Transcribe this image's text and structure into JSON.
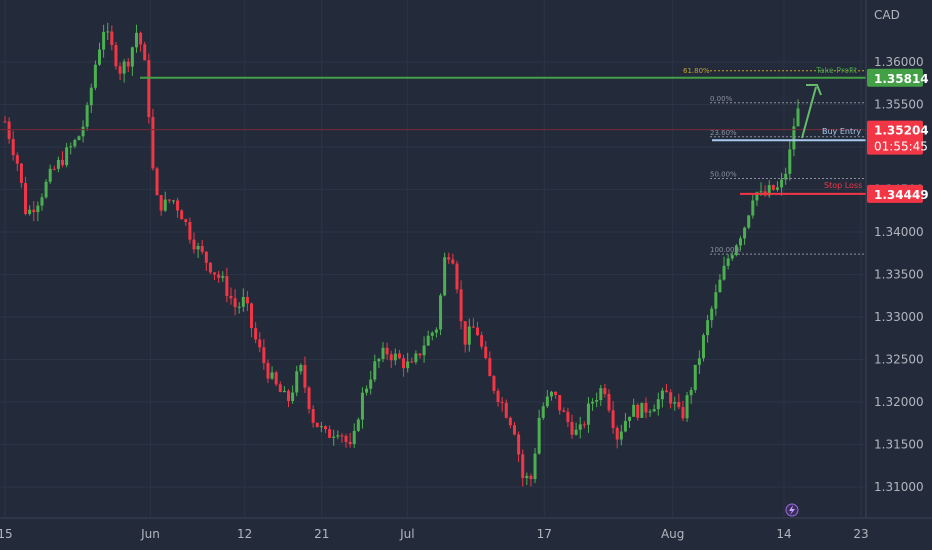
{
  "chart_data": {
    "type": "candlestick",
    "currency_label": "CAD",
    "ylim": [
      1.305,
      1.3625
    ],
    "y_ticks": [
      1.31,
      1.315,
      1.32,
      1.325,
      1.33,
      1.335,
      1.34,
      1.345,
      1.35,
      1.355,
      1.36
    ],
    "y_tick_labels": [
      "1.31000",
      "1.31500",
      "1.32000",
      "1.32500",
      "1.33000",
      "1.33500",
      "1.34000",
      "1.34500",
      "1.35000",
      "1.35500",
      "1.36000"
    ],
    "x_ticks": [
      {
        "label": "15",
        "day": 0
      },
      {
        "label": "Jun",
        "day": 17
      },
      {
        "label": "12",
        "day": 28
      },
      {
        "label": "21",
        "day": 37
      },
      {
        "label": "Jul",
        "day": 47
      },
      {
        "label": "17",
        "day": 63
      },
      {
        "label": "Aug",
        "day": 78
      },
      {
        "label": "14",
        "day": 91
      },
      {
        "label": "23",
        "day": 100
      }
    ],
    "price_path": [
      [
        0,
        1.353
      ],
      [
        1.5,
        1.348
      ],
      [
        2.5,
        1.342
      ],
      [
        4,
        1.344
      ],
      [
        5.5,
        1.347
      ],
      [
        7,
        1.349
      ],
      [
        8.5,
        1.351
      ],
      [
        9.5,
        1.3535
      ],
      [
        10.5,
        1.3595
      ],
      [
        11.5,
        1.364
      ],
      [
        12.5,
        1.3615
      ],
      [
        13.5,
        1.359
      ],
      [
        14.5,
        1.3605
      ],
      [
        15.5,
        1.364
      ],
      [
        16.5,
        1.3585
      ],
      [
        17.5,
        1.344
      ],
      [
        18.5,
        1.343
      ],
      [
        19.5,
        1.344
      ],
      [
        20.5,
        1.3425
      ],
      [
        21.5,
        1.34
      ],
      [
        22.5,
        1.338
      ],
      [
        24,
        1.336
      ],
      [
        25.5,
        1.334
      ],
      [
        27,
        1.331
      ],
      [
        28,
        1.332
      ],
      [
        29,
        1.328
      ],
      [
        30.5,
        1.324
      ],
      [
        31.5,
        1.322
      ],
      [
        33,
        1.32
      ],
      [
        34.5,
        1.324
      ],
      [
        36,
        1.318
      ],
      [
        37.5,
        1.316
      ],
      [
        39,
        1.317
      ],
      [
        40.5,
        1.314
      ],
      [
        41.5,
        1.32
      ],
      [
        43,
        1.324
      ],
      [
        44.5,
        1.326
      ],
      [
        46,
        1.325
      ],
      [
        47.5,
        1.324
      ],
      [
        49,
        1.327
      ],
      [
        50.5,
        1.329
      ],
      [
        51.5,
        1.338
      ],
      [
        52.5,
        1.337
      ],
      [
        53.5,
        1.327
      ],
      [
        55,
        1.329
      ],
      [
        56.5,
        1.323
      ],
      [
        58,
        1.32
      ],
      [
        59.5,
        1.317
      ],
      [
        60.5,
        1.311
      ],
      [
        61.5,
        1.311
      ],
      [
        62.5,
        1.319
      ],
      [
        64,
        1.321
      ],
      [
        65.5,
        1.318
      ],
      [
        67,
        1.316
      ],
      [
        68.5,
        1.32
      ],
      [
        70,
        1.322
      ],
      [
        71.5,
        1.316
      ],
      [
        73,
        1.319
      ],
      [
        74.5,
        1.319
      ],
      [
        76,
        1.32
      ],
      [
        77.5,
        1.321
      ],
      [
        79,
        1.318
      ],
      [
        80.5,
        1.323
      ],
      [
        82,
        1.329
      ],
      [
        83.5,
        1.334
      ],
      [
        84.5,
        1.337
      ],
      [
        85.5,
        1.339
      ],
      [
        86.5,
        1.341
      ],
      [
        87.5,
        1.345
      ],
      [
        88.5,
        1.344
      ],
      [
        89.5,
        1.345
      ],
      [
        90.5,
        1.345
      ],
      [
        91.5,
        1.348
      ],
      [
        92.5,
        1.355
      ],
      [
        93,
        1.352
      ]
    ],
    "last_price": 1.35204,
    "countdown": "01:55:45",
    "levels": {
      "take_profit": {
        "label": "Take Profit",
        "price": 1.35814,
        "price_label": "1.35814",
        "fib_label": "61.80%",
        "color": "#43a047"
      },
      "buy_entry": {
        "label": "Buy Entry",
        "price": 1.3508,
        "color": "#a9c8ee"
      },
      "stop_loss": {
        "label": "Stop Loss",
        "price": 1.34449,
        "price_label": "1.34449",
        "color": "#f23645"
      }
    },
    "fib_levels": [
      {
        "label": "0.00%",
        "price": 1.3552
      },
      {
        "label": "23.60%",
        "price": 1.3512
      },
      {
        "label": "50.00%",
        "price": 1.3463
      },
      {
        "label": "100.00%",
        "price": 1.3374
      }
    ],
    "colors": {
      "up": "#4caf50",
      "down": "#f23645",
      "background": "#232b3b",
      "grid": "#2b3445"
    }
  }
}
